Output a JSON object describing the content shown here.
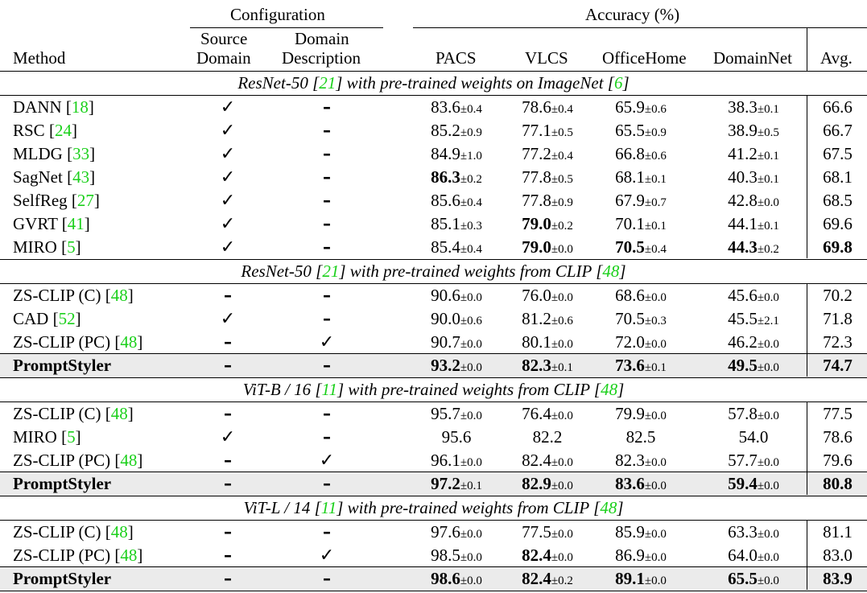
{
  "header": {
    "group_configuration": "Configuration",
    "group_accuracy": "Accuracy (%)",
    "col_method": "Method",
    "col_source_line1": "Source",
    "col_source_line2": "Domain",
    "col_desc_line1": "Domain",
    "col_desc_line2": "Description",
    "col_pacs": "PACS",
    "col_vlcs": "VLCS",
    "col_officehome": "OfficeHome",
    "col_domainnet": "DomainNet",
    "col_avg": "Avg."
  },
  "sections": [
    {
      "title_parts": [
        "ResNet-50 [",
        "21",
        "] with pre-trained weights on ImageNet [",
        "6",
        "]"
      ],
      "rows": [
        {
          "method": "DANN [",
          "ref": "18",
          "src": "✓",
          "desc": "–",
          "pacs": "83.6",
          "pacs_sd": "±0.4",
          "vlcs": "78.6",
          "vlcs_sd": "±0.4",
          "oh": "65.9",
          "oh_sd": "±0.6",
          "dn": "38.3",
          "dn_sd": "±0.1",
          "avg": "66.6",
          "bold": []
        },
        {
          "method": "RSC [",
          "ref": "24",
          "src": "✓",
          "desc": "–",
          "pacs": "85.2",
          "pacs_sd": "±0.9",
          "vlcs": "77.1",
          "vlcs_sd": "±0.5",
          "oh": "65.5",
          "oh_sd": "±0.9",
          "dn": "38.9",
          "dn_sd": "±0.5",
          "avg": "66.7",
          "bold": []
        },
        {
          "method": "MLDG [",
          "ref": "33",
          "src": "✓",
          "desc": "–",
          "pacs": "84.9",
          "pacs_sd": "±1.0",
          "vlcs": "77.2",
          "vlcs_sd": "±0.4",
          "oh": "66.8",
          "oh_sd": "±0.6",
          "dn": "41.2",
          "dn_sd": "±0.1",
          "avg": "67.5",
          "bold": []
        },
        {
          "method": "SagNet [",
          "ref": "43",
          "src": "✓",
          "desc": "–",
          "pacs": "86.3",
          "pacs_sd": "±0.2",
          "vlcs": "77.8",
          "vlcs_sd": "±0.5",
          "oh": "68.1",
          "oh_sd": "±0.1",
          "dn": "40.3",
          "dn_sd": "±0.1",
          "avg": "68.1",
          "bold": [
            "pacs"
          ]
        },
        {
          "method": "SelfReg [",
          "ref": "27",
          "src": "✓",
          "desc": "–",
          "pacs": "85.6",
          "pacs_sd": "±0.4",
          "vlcs": "77.8",
          "vlcs_sd": "±0.9",
          "oh": "67.9",
          "oh_sd": "±0.7",
          "dn": "42.8",
          "dn_sd": "±0.0",
          "avg": "68.5",
          "bold": []
        },
        {
          "method": "GVRT [",
          "ref": "41",
          "src": "✓",
          "desc": "–",
          "pacs": "85.1",
          "pacs_sd": "±0.3",
          "vlcs": "79.0",
          "vlcs_sd": "±0.2",
          "oh": "70.1",
          "oh_sd": "±0.1",
          "dn": "44.1",
          "dn_sd": "±0.1",
          "avg": "69.6",
          "bold": [
            "vlcs"
          ]
        },
        {
          "method": "MIRO [",
          "ref": "5",
          "src": "✓",
          "desc": "–",
          "pacs": "85.4",
          "pacs_sd": "±0.4",
          "vlcs": "79.0",
          "vlcs_sd": "±0.0",
          "oh": "70.5",
          "oh_sd": "±0.4",
          "dn": "44.3",
          "dn_sd": "±0.2",
          "avg": "69.8",
          "bold": [
            "vlcs",
            "oh",
            "dn",
            "avg"
          ]
        }
      ]
    },
    {
      "title_parts": [
        "ResNet-50 [",
        "21",
        "] with pre-trained weights from CLIP [",
        "48",
        "]"
      ],
      "rows": [
        {
          "method": "ZS-CLIP (C) [",
          "ref": "48",
          "src": "–",
          "desc": "–",
          "pacs": "90.6",
          "pacs_sd": "±0.0",
          "vlcs": "76.0",
          "vlcs_sd": "±0.0",
          "oh": "68.6",
          "oh_sd": "±0.0",
          "dn": "45.6",
          "dn_sd": "±0.0",
          "avg": "70.2",
          "bold": []
        },
        {
          "method": "CAD [",
          "ref": "52",
          "src": "✓",
          "desc": "–",
          "pacs": "90.0",
          "pacs_sd": "±0.6",
          "vlcs": "81.2",
          "vlcs_sd": "±0.6",
          "oh": "70.5",
          "oh_sd": "±0.3",
          "dn": "45.5",
          "dn_sd": "±2.1",
          "avg": "71.8",
          "bold": []
        },
        {
          "method": "ZS-CLIP (PC) [",
          "ref": "48",
          "src": "–",
          "desc": "✓",
          "pacs": "90.7",
          "pacs_sd": "±0.0",
          "vlcs": "80.1",
          "vlcs_sd": "±0.0",
          "oh": "72.0",
          "oh_sd": "±0.0",
          "dn": "46.2",
          "dn_sd": "±0.0",
          "avg": "72.3",
          "bold": []
        },
        {
          "method": "PromptStyler",
          "ref": "",
          "src": "–",
          "desc": "–",
          "pacs": "93.2",
          "pacs_sd": "±0.0",
          "vlcs": "82.3",
          "vlcs_sd": "±0.1",
          "oh": "73.6",
          "oh_sd": "±0.1",
          "dn": "49.5",
          "dn_sd": "±0.0",
          "avg": "74.7",
          "bold": [
            "method",
            "pacs",
            "vlcs",
            "oh",
            "dn",
            "avg"
          ],
          "highlight": true
        }
      ]
    },
    {
      "title_parts": [
        "ViT-B / 16 [",
        "11",
        "] with pre-trained weights from CLIP [",
        "48",
        "]"
      ],
      "rows": [
        {
          "method": "ZS-CLIP (C) [",
          "ref": "48",
          "src": "–",
          "desc": "–",
          "pacs": "95.7",
          "pacs_sd": "±0.0",
          "vlcs": "76.4",
          "vlcs_sd": "±0.0",
          "oh": "79.9",
          "oh_sd": "±0.0",
          "dn": "57.8",
          "dn_sd": "±0.0",
          "avg": "77.5",
          "bold": []
        },
        {
          "method": "MIRO [",
          "ref": "5",
          "src": "✓",
          "desc": "–",
          "pacs": "95.6",
          "pacs_sd": "",
          "vlcs": "82.2",
          "vlcs_sd": "",
          "oh": "82.5",
          "oh_sd": "",
          "dn": "54.0",
          "dn_sd": "",
          "avg": "78.6",
          "bold": []
        },
        {
          "method": "ZS-CLIP (PC) [",
          "ref": "48",
          "src": "–",
          "desc": "✓",
          "pacs": "96.1",
          "pacs_sd": "±0.0",
          "vlcs": "82.4",
          "vlcs_sd": "±0.0",
          "oh": "82.3",
          "oh_sd": "±0.0",
          "dn": "57.7",
          "dn_sd": "±0.0",
          "avg": "79.6",
          "bold": []
        },
        {
          "method": "PromptStyler",
          "ref": "",
          "src": "–",
          "desc": "–",
          "pacs": "97.2",
          "pacs_sd": "±0.1",
          "vlcs": "82.9",
          "vlcs_sd": "±0.0",
          "oh": "83.6",
          "oh_sd": "±0.0",
          "dn": "59.4",
          "dn_sd": "±0.0",
          "avg": "80.8",
          "bold": [
            "method",
            "pacs",
            "vlcs",
            "oh",
            "dn",
            "avg"
          ],
          "highlight": true
        }
      ]
    },
    {
      "title_parts": [
        "ViT-L / 14 [",
        "11",
        "] with pre-trained weights from CLIP [",
        "48",
        "]"
      ],
      "rows": [
        {
          "method": "ZS-CLIP (C) [",
          "ref": "48",
          "src": "–",
          "desc": "–",
          "pacs": "97.6",
          "pacs_sd": "±0.0",
          "vlcs": "77.5",
          "vlcs_sd": "±0.0",
          "oh": "85.9",
          "oh_sd": "±0.0",
          "dn": "63.3",
          "dn_sd": "±0.0",
          "avg": "81.1",
          "bold": []
        },
        {
          "method": "ZS-CLIP (PC) [",
          "ref": "48",
          "src": "–",
          "desc": "✓",
          "pacs": "98.5",
          "pacs_sd": "±0.0",
          "vlcs": "82.4",
          "vlcs_sd": "±0.0",
          "oh": "86.9",
          "oh_sd": "±0.0",
          "dn": "64.0",
          "dn_sd": "±0.0",
          "avg": "83.0",
          "bold": [
            "vlcs"
          ]
        },
        {
          "method": "PromptStyler",
          "ref": "",
          "src": "–",
          "desc": "–",
          "pacs": "98.6",
          "pacs_sd": "±0.0",
          "vlcs": "82.4",
          "vlcs_sd": "±0.2",
          "oh": "89.1",
          "oh_sd": "±0.0",
          "dn": "65.5",
          "dn_sd": "±0.0",
          "avg": "83.9",
          "bold": [
            "method",
            "pacs",
            "vlcs",
            "oh",
            "dn",
            "avg"
          ],
          "highlight": true
        }
      ]
    }
  ],
  "colors": {
    "reference": "#1bd01b",
    "highlight_row": "#ebebeb"
  }
}
